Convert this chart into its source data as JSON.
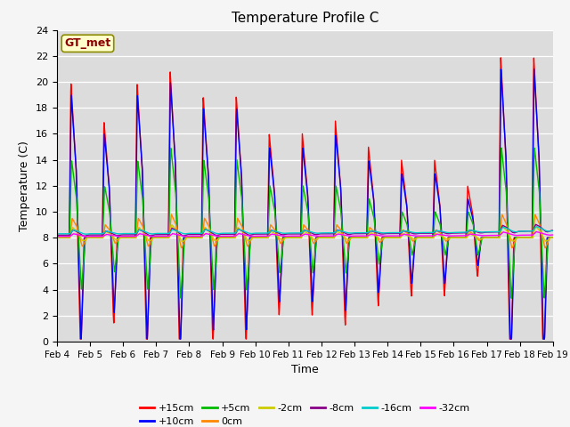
{
  "title": "Temperature Profile C",
  "xlabel": "Time",
  "ylabel": "Temperature (C)",
  "annotation": "GT_met",
  "ylim": [
    0,
    24
  ],
  "x_tick_labels": [
    "Feb 4",
    "Feb 5",
    "Feb 6",
    "Feb 7",
    "Feb 8",
    "Feb 9",
    "Feb 10",
    "Feb 11",
    "Feb 12",
    "Feb 13",
    "Feb 14",
    "Feb 15",
    "Feb 16",
    "Feb 17",
    "Feb 18",
    "Feb 19"
  ],
  "legend_entries": [
    "+15cm",
    "+10cm",
    "+5cm",
    "0cm",
    "-2cm",
    "-8cm",
    "-16cm",
    "-32cm"
  ],
  "line_colors": [
    "#ff0000",
    "#0000ff",
    "#00bb00",
    "#ff8800",
    "#cccc00",
    "#880088",
    "#00cccc",
    "#ff00ff"
  ],
  "background_color": "#dcdcdc",
  "yticks": [
    0,
    2,
    4,
    6,
    8,
    10,
    12,
    14,
    16,
    18,
    20,
    22,
    24
  ]
}
